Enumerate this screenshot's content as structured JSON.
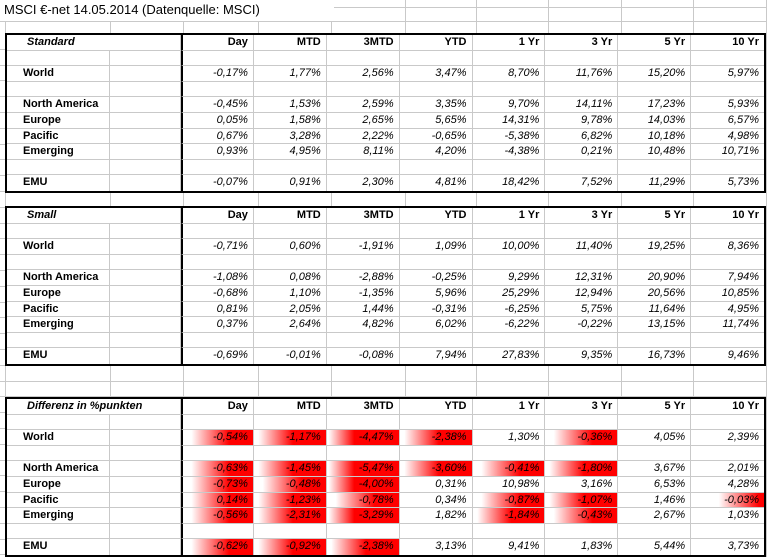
{
  "title": "MSCI €-net 14.05.2014 (Datenquelle: MSCI)",
  "column_headers": [
    "Day",
    "MTD",
    "3MTD",
    "YTD",
    "1 Yr",
    "3 Yr",
    "5 Yr",
    "10 Yr"
  ],
  "colors": {
    "highlight_red": "#ff0000",
    "gridline": "#c9c9c9",
    "table_border": "#000000",
    "background": "#ffffff"
  },
  "tables": [
    {
      "name": "Standard",
      "rows": [
        {
          "label": "World",
          "values": [
            "-0,17%",
            "1,77%",
            "2,56%",
            "3,47%",
            "8,70%",
            "11,76%",
            "15,20%",
            "5,97%"
          ]
        },
        {
          "label": "North America",
          "values": [
            "-0,45%",
            "1,53%",
            "2,59%",
            "3,35%",
            "9,70%",
            "14,11%",
            "17,23%",
            "5,93%"
          ]
        },
        {
          "label": "Europe",
          "values": [
            "0,05%",
            "1,58%",
            "2,65%",
            "5,65%",
            "14,31%",
            "9,78%",
            "14,03%",
            "6,57%"
          ]
        },
        {
          "label": "Pacific",
          "values": [
            "0,67%",
            "3,28%",
            "2,22%",
            "-0,65%",
            "-5,38%",
            "6,82%",
            "10,18%",
            "4,98%"
          ]
        },
        {
          "label": "Emerging",
          "values": [
            "0,93%",
            "4,95%",
            "8,11%",
            "4,20%",
            "-4,38%",
            "0,21%",
            "10,48%",
            "10,71%"
          ]
        },
        {
          "label": "EMU",
          "values": [
            "-0,07%",
            "0,91%",
            "2,30%",
            "4,81%",
            "18,42%",
            "7,52%",
            "11,29%",
            "5,73%"
          ]
        }
      ]
    },
    {
      "name": "Small",
      "rows": [
        {
          "label": "World",
          "values": [
            "-0,71%",
            "0,60%",
            "-1,91%",
            "1,09%",
            "10,00%",
            "11,40%",
            "19,25%",
            "8,36%"
          ]
        },
        {
          "label": "North America",
          "values": [
            "-1,08%",
            "0,08%",
            "-2,88%",
            "-0,25%",
            "9,29%",
            "12,31%",
            "20,90%",
            "7,94%"
          ]
        },
        {
          "label": "Europe",
          "values": [
            "-0,68%",
            "1,10%",
            "-1,35%",
            "5,96%",
            "25,29%",
            "12,94%",
            "20,56%",
            "10,85%"
          ]
        },
        {
          "label": "Pacific",
          "values": [
            "0,81%",
            "2,05%",
            "1,44%",
            "-0,31%",
            "-6,25%",
            "5,75%",
            "11,64%",
            "4,95%"
          ]
        },
        {
          "label": "Emerging",
          "values": [
            "0,37%",
            "2,64%",
            "4,82%",
            "6,02%",
            "-6,22%",
            "-0,22%",
            "13,15%",
            "11,74%"
          ]
        },
        {
          "label": "EMU",
          "values": [
            "-0,69%",
            "-0,01%",
            "-0,08%",
            "7,94%",
            "27,83%",
            "9,35%",
            "16,73%",
            "9,46%"
          ]
        }
      ]
    },
    {
      "name": "Differenz in %punkten",
      "rows": [
        {
          "label": "World",
          "values": [
            "-0,54%",
            "-1,17%",
            "-4,47%",
            "-2,38%",
            "1,30%",
            "-0,36%",
            "4,05%",
            "2,39%"
          ],
          "highlight_tiers": [
            2,
            3,
            4,
            3,
            0,
            2,
            0,
            0
          ]
        },
        {
          "label": "North America",
          "values": [
            "-0,63%",
            "-1,45%",
            "-5,47%",
            "-3,60%",
            "-0,41%",
            "-1,80%",
            "3,67%",
            "2,01%"
          ],
          "highlight_tiers": [
            2,
            3,
            4,
            3,
            2,
            3,
            0,
            0
          ]
        },
        {
          "label": "Europe",
          "values": [
            "-0,73%",
            "-0,48%",
            "-4,00%",
            "0,31%",
            "10,98%",
            "3,16%",
            "6,53%",
            "4,28%"
          ],
          "highlight_tiers": [
            2,
            2,
            4,
            0,
            0,
            0,
            0,
            0
          ]
        },
        {
          "label": "Pacific",
          "values": [
            "0,14%",
            "-1,23%",
            "-0,78%",
            "0,34%",
            "-0,87%",
            "-1,07%",
            "1,46%",
            "-0,03%"
          ],
          "highlight_tiers": [
            2,
            3,
            2,
            0,
            2,
            3,
            0,
            1
          ]
        },
        {
          "label": "Emerging",
          "values": [
            "-0,56%",
            "-2,31%",
            "-3,29%",
            "1,82%",
            "-1,84%",
            "-0,43%",
            "2,67%",
            "1,03%"
          ],
          "highlight_tiers": [
            2,
            3,
            4,
            0,
            3,
            2,
            0,
            0
          ]
        },
        {
          "label": "EMU",
          "values": [
            "-0,62%",
            "-0,92%",
            "-2,38%",
            "3,13%",
            "9,41%",
            "1,83%",
            "5,44%",
            "3,73%"
          ],
          "highlight_tiers": [
            2,
            3,
            3,
            0,
            0,
            0,
            0,
            0
          ]
        }
      ]
    }
  ]
}
